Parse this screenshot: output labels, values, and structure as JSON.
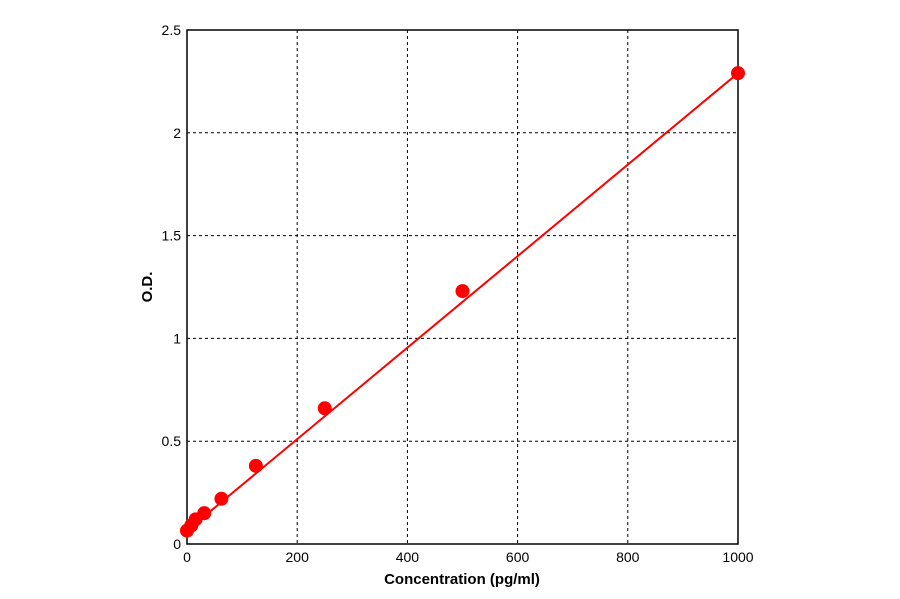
{
  "chart_data": {
    "type": "scatter",
    "title": "",
    "xlabel": "Concentration (pg/ml)",
    "ylabel": "O.D.",
    "xlim": [
      0,
      1000
    ],
    "ylim": [
      0,
      2.5
    ],
    "xticks": [
      0,
      200,
      400,
      600,
      800,
      1000
    ],
    "yticks": [
      0,
      0.5,
      1,
      1.5,
      2,
      2.5
    ],
    "grid": true,
    "grid_style": "dashed",
    "color": "#ff0000",
    "points": [
      {
        "x": 0,
        "y": 0.065
      },
      {
        "x": 7.8,
        "y": 0.09
      },
      {
        "x": 15.6,
        "y": 0.12
      },
      {
        "x": 31.25,
        "y": 0.15
      },
      {
        "x": 62.5,
        "y": 0.22
      },
      {
        "x": 125,
        "y": 0.38
      },
      {
        "x": 250,
        "y": 0.66
      },
      {
        "x": 500,
        "y": 1.23
      },
      {
        "x": 1000,
        "y": 2.29
      }
    ],
    "fit_line": [
      {
        "x": 0,
        "y": 0.065
      },
      {
        "x": 1000,
        "y": 2.29
      }
    ]
  }
}
